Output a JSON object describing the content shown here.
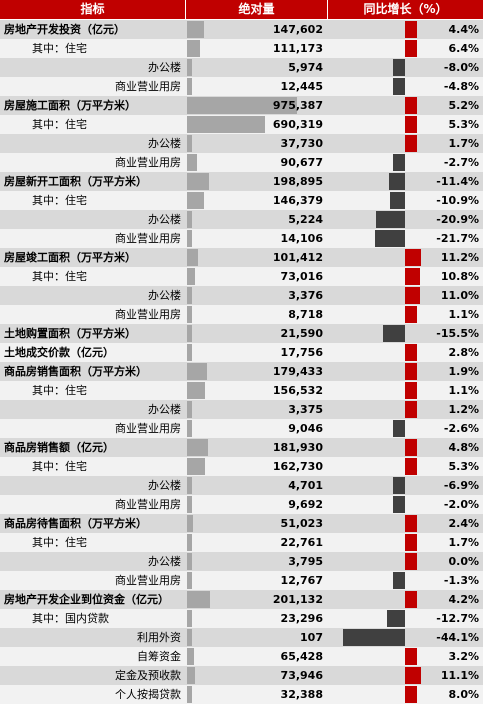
{
  "headers": {
    "indicator": "指标",
    "absolute": "绝对量",
    "yoy": "同比增长（%）"
  },
  "colors": {
    "header_bg": "#c00000",
    "abs_bar": "#a6a6a6",
    "yoy_positive": "#c00000",
    "yoy_negative": "#404040"
  },
  "chart_data": {
    "type": "table",
    "columns": [
      "指标",
      "绝对量",
      "同比增长（%）"
    ],
    "abs_bar_max": 975387,
    "yoy_range": [
      -44.1,
      11.2
    ],
    "rows": [
      {
        "label": "房地产开发投资（亿元）",
        "bold": true,
        "level": 0,
        "abs": 147602,
        "abs_text": "147,602",
        "yoy": 4.4,
        "yoy_text": "4.4%"
      },
      {
        "label": "其中：住宅",
        "bold": false,
        "level": 1,
        "abs": 111173,
        "abs_text": "111,173",
        "yoy": 6.4,
        "yoy_text": "6.4%"
      },
      {
        "label": "办公楼",
        "bold": false,
        "level": 2,
        "abs": 5974,
        "abs_text": "5,974",
        "yoy": -8.0,
        "yoy_text": "-8.0%"
      },
      {
        "label": "商业营业用房",
        "bold": false,
        "level": 2,
        "abs": 12445,
        "abs_text": "12,445",
        "yoy": -4.8,
        "yoy_text": "-4.8%"
      },
      {
        "label": "房屋施工面积（万平方米）",
        "bold": true,
        "level": 0,
        "abs": 975387,
        "abs_text": "975,387",
        "yoy": 5.2,
        "yoy_text": "5.2%"
      },
      {
        "label": "其中：住宅",
        "bold": false,
        "level": 1,
        "abs": 690319,
        "abs_text": "690,319",
        "yoy": 5.3,
        "yoy_text": "5.3%"
      },
      {
        "label": "办公楼",
        "bold": false,
        "level": 2,
        "abs": 37730,
        "abs_text": "37,730",
        "yoy": 1.7,
        "yoy_text": "1.7%"
      },
      {
        "label": "商业营业用房",
        "bold": false,
        "level": 2,
        "abs": 90677,
        "abs_text": "90,677",
        "yoy": -2.7,
        "yoy_text": "-2.7%"
      },
      {
        "label": "房屋新开工面积（万平方米）",
        "bold": true,
        "level": 0,
        "abs": 198895,
        "abs_text": "198,895",
        "yoy": -11.4,
        "yoy_text": "-11.4%"
      },
      {
        "label": "其中：住宅",
        "bold": false,
        "level": 1,
        "abs": 146379,
        "abs_text": "146,379",
        "yoy": -10.9,
        "yoy_text": "-10.9%"
      },
      {
        "label": "办公楼",
        "bold": false,
        "level": 2,
        "abs": 5224,
        "abs_text": "5,224",
        "yoy": -20.9,
        "yoy_text": "-20.9%"
      },
      {
        "label": "商业营业用房",
        "bold": false,
        "level": 2,
        "abs": 14106,
        "abs_text": "14,106",
        "yoy": -21.7,
        "yoy_text": "-21.7%"
      },
      {
        "label": "房屋竣工面积（万平方米）",
        "bold": true,
        "level": 0,
        "abs": 101412,
        "abs_text": "101,412",
        "yoy": 11.2,
        "yoy_text": "11.2%"
      },
      {
        "label": "其中：住宅",
        "bold": false,
        "level": 1,
        "abs": 73016,
        "abs_text": "73,016",
        "yoy": 10.8,
        "yoy_text": "10.8%"
      },
      {
        "label": "办公楼",
        "bold": false,
        "level": 2,
        "abs": 3376,
        "abs_text": "3,376",
        "yoy": 11.0,
        "yoy_text": "11.0%"
      },
      {
        "label": "商业营业用房",
        "bold": false,
        "level": 2,
        "abs": 8718,
        "abs_text": "8,718",
        "yoy": 1.1,
        "yoy_text": "1.1%"
      },
      {
        "label": "土地购置面积（万平方米）",
        "bold": true,
        "level": 0,
        "abs": 21590,
        "abs_text": "21,590",
        "yoy": -15.5,
        "yoy_text": "-15.5%"
      },
      {
        "label": "土地成交价款（亿元）",
        "bold": true,
        "level": 0,
        "abs": 17756,
        "abs_text": "17,756",
        "yoy": 2.8,
        "yoy_text": "2.8%"
      },
      {
        "label": "商品房销售面积（万平方米）",
        "bold": true,
        "level": 0,
        "abs": 179433,
        "abs_text": "179,433",
        "yoy": 1.9,
        "yoy_text": "1.9%"
      },
      {
        "label": "其中：住宅",
        "bold": false,
        "level": 1,
        "abs": 156532,
        "abs_text": "156,532",
        "yoy": 1.1,
        "yoy_text": "1.1%"
      },
      {
        "label": "办公楼",
        "bold": false,
        "level": 2,
        "abs": 3375,
        "abs_text": "3,375",
        "yoy": 1.2,
        "yoy_text": "1.2%"
      },
      {
        "label": "商业营业用房",
        "bold": false,
        "level": 2,
        "abs": 9046,
        "abs_text": "9,046",
        "yoy": -2.6,
        "yoy_text": "-2.6%"
      },
      {
        "label": "商品房销售额（亿元）",
        "bold": true,
        "level": 0,
        "abs": 181930,
        "abs_text": "181,930",
        "yoy": 4.8,
        "yoy_text": "4.8%"
      },
      {
        "label": "其中：住宅",
        "bold": false,
        "level": 1,
        "abs": 162730,
        "abs_text": "162,730",
        "yoy": 5.3,
        "yoy_text": "5.3%"
      },
      {
        "label": "办公楼",
        "bold": false,
        "level": 2,
        "abs": 4701,
        "abs_text": "4,701",
        "yoy": -6.9,
        "yoy_text": "-6.9%"
      },
      {
        "label": "商业营业用房",
        "bold": false,
        "level": 2,
        "abs": 9692,
        "abs_text": "9,692",
        "yoy": -2.0,
        "yoy_text": "-2.0%"
      },
      {
        "label": "商品房待售面积（万平方米）",
        "bold": true,
        "level": 0,
        "abs": 51023,
        "abs_text": "51,023",
        "yoy": 2.4,
        "yoy_text": "2.4%"
      },
      {
        "label": "其中：住宅",
        "bold": false,
        "level": 1,
        "abs": 22761,
        "abs_text": "22,761",
        "yoy": 1.7,
        "yoy_text": "1.7%"
      },
      {
        "label": "办公楼",
        "bold": false,
        "level": 2,
        "abs": 3795,
        "abs_text": "3,795",
        "yoy": 0.0,
        "yoy_text": "0.0%"
      },
      {
        "label": "商业营业用房",
        "bold": false,
        "level": 2,
        "abs": 12767,
        "abs_text": "12,767",
        "yoy": -1.3,
        "yoy_text": "-1.3%"
      },
      {
        "label": "房地产开发企业到位资金（亿元）",
        "bold": true,
        "level": 0,
        "abs": 201132,
        "abs_text": "201,132",
        "yoy": 4.2,
        "yoy_text": "4.2%"
      },
      {
        "label": "其中：国内贷款",
        "bold": false,
        "level": 1,
        "abs": 23296,
        "abs_text": "23,296",
        "yoy": -12.7,
        "yoy_text": "-12.7%"
      },
      {
        "label": "利用外资",
        "bold": false,
        "level": 2,
        "abs": 107,
        "abs_text": "107",
        "yoy": -44.1,
        "yoy_text": "-44.1%"
      },
      {
        "label": "自筹资金",
        "bold": false,
        "level": 2,
        "abs": 65428,
        "abs_text": "65,428",
        "yoy": 3.2,
        "yoy_text": "3.2%"
      },
      {
        "label": "定金及预收款",
        "bold": false,
        "level": 2,
        "abs": 73946,
        "abs_text": "73,946",
        "yoy": 11.1,
        "yoy_text": "11.1%"
      },
      {
        "label": "个人按揭贷款",
        "bold": false,
        "level": 2,
        "abs": 32388,
        "abs_text": "32,388",
        "yoy": 8.0,
        "yoy_text": "8.0%"
      }
    ]
  }
}
